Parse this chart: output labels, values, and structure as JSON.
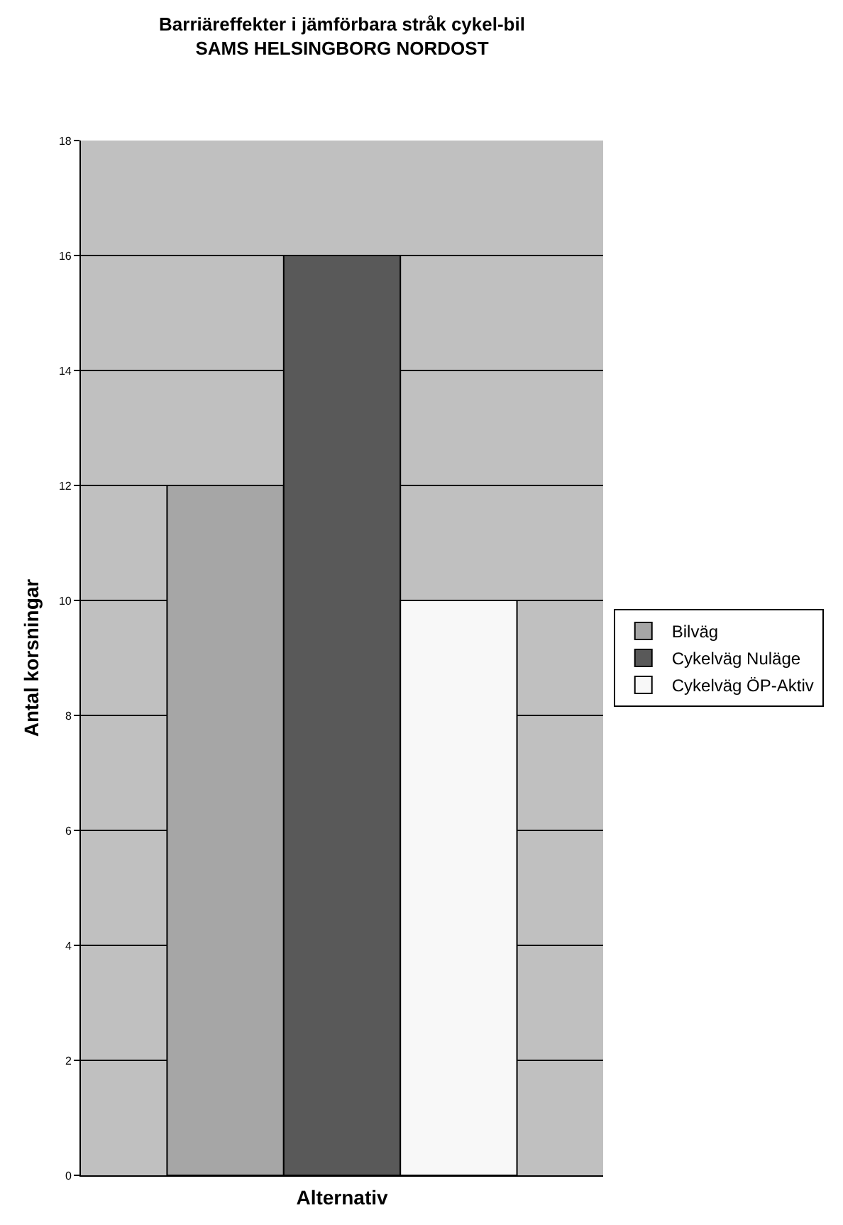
{
  "chart_data": {
    "type": "bar",
    "title": "Barriäreffekter i jämförbara stråk cykel-bil",
    "subtitle": "SAMS HELSINGBORG NORDOST",
    "xlabel": "Alternativ",
    "ylabel": "Antal korsningar",
    "categories": [
      null
    ],
    "series": [
      {
        "name": "Bilväg",
        "color": "#a6a6a6",
        "values": [
          12
        ]
      },
      {
        "name": "Cykelväg Nuläge",
        "color": "#595959",
        "values": [
          16
        ]
      },
      {
        "name": "Cykelväg ÖP-Aktiv",
        "color": "#f8f8f8",
        "values": [
          10
        ]
      }
    ],
    "ylim": [
      0,
      18
    ],
    "yticks": [
      0,
      2,
      4,
      6,
      8,
      10,
      12,
      14,
      16,
      18
    ],
    "grid": "y",
    "legend": "right"
  }
}
